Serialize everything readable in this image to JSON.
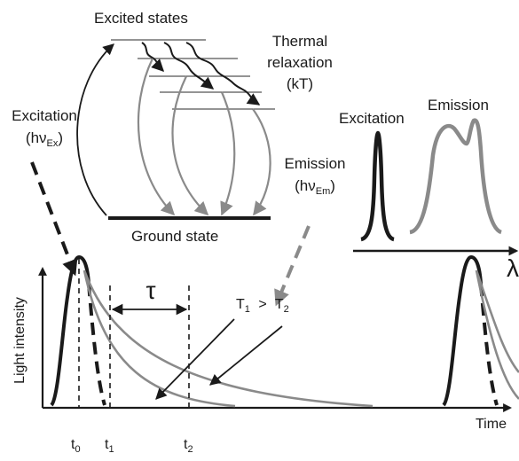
{
  "levels": {
    "excited": "Excited states",
    "ground": "Ground state",
    "thermal_l1": "Thermal",
    "thermal_l2": "relaxation",
    "thermal_l3": "(kT)"
  },
  "transitions": {
    "excitation": "Excitation",
    "excitation_energy": "(hν",
    "excitation_sub": "Ex",
    "emission": "Emission",
    "emission_energy": "(hν",
    "emission_sub": "Em",
    "close_paren": ")"
  },
  "spectrum": {
    "excitation": "Excitation",
    "emission": "Emission",
    "axis": "λ"
  },
  "decay": {
    "ylabel": "Light intensity",
    "xlabel": "Time",
    "tau": "τ",
    "t0": "t",
    "t0_sub": "0",
    "t1": "t",
    "t1_sub": "1",
    "t2": "t",
    "t2_sub": "2",
    "T1": "T",
    "T1_sub": "1",
    "gt": ">",
    "T2": "T",
    "T2_sub": "2"
  },
  "colors": {
    "dark": "#1a1a1a",
    "gray": "#8a8a8a",
    "line_gray": "#777777"
  }
}
